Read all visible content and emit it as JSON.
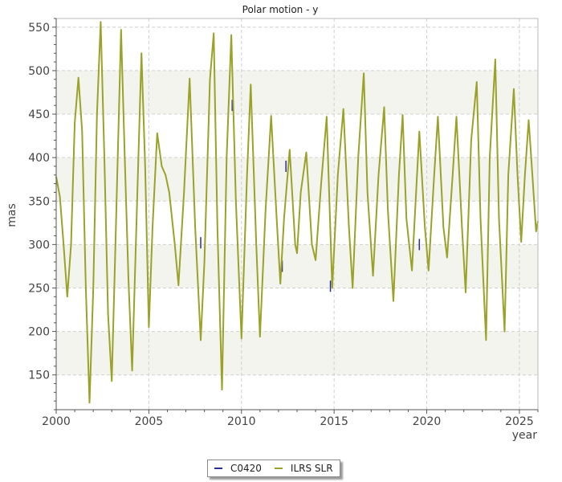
{
  "chart_data": {
    "type": "line",
    "title": "Polar motion - y",
    "xlabel": "year",
    "ylabel": "mas",
    "xlim": [
      2000,
      2026
    ],
    "ylim": [
      110,
      560
    ],
    "x_ticks": [
      "2000",
      "2005",
      "2010",
      "2015",
      "2020",
      "2025"
    ],
    "y_ticks": [
      "150",
      "200",
      "250",
      "300",
      "350",
      "400",
      "450",
      "500",
      "550"
    ],
    "grid": true,
    "legend_position": "bottom-center",
    "series": [
      {
        "name": "C0420",
        "color": "#2b2b9b",
        "points": [
          [
            2007.8,
            302
          ],
          [
            2009.5,
            460
          ],
          [
            2012.2,
            275
          ],
          [
            2012.4,
            390
          ],
          [
            2014.8,
            252
          ],
          [
            2019.6,
            300
          ]
        ]
      },
      {
        "name": "ILRS SLR",
        "color": "#9aa22a",
        "points": [
          [
            2000.0,
            378
          ],
          [
            2000.2,
            355
          ],
          [
            2000.4,
            300
          ],
          [
            2000.6,
            240
          ],
          [
            2000.8,
            300
          ],
          [
            2001.0,
            440
          ],
          [
            2001.2,
            492
          ],
          [
            2001.4,
            430
          ],
          [
            2001.6,
            250
          ],
          [
            2001.8,
            118
          ],
          [
            2002.0,
            250
          ],
          [
            2002.2,
            450
          ],
          [
            2002.4,
            556
          ],
          [
            2002.6,
            400
          ],
          [
            2002.8,
            220
          ],
          [
            2003.0,
            143
          ],
          [
            2003.2,
            300
          ],
          [
            2003.5,
            547
          ],
          [
            2003.7,
            400
          ],
          [
            2003.9,
            260
          ],
          [
            2004.1,
            155
          ],
          [
            2004.3,
            300
          ],
          [
            2004.6,
            520
          ],
          [
            2004.8,
            390
          ],
          [
            2005.0,
            205
          ],
          [
            2005.2,
            320
          ],
          [
            2005.45,
            428
          ],
          [
            2005.7,
            390
          ],
          [
            2005.9,
            380
          ],
          [
            2006.1,
            360
          ],
          [
            2006.4,
            300
          ],
          [
            2006.6,
            253
          ],
          [
            2006.9,
            360
          ],
          [
            2007.2,
            491
          ],
          [
            2007.5,
            320
          ],
          [
            2007.8,
            190
          ],
          [
            2008.0,
            280
          ],
          [
            2008.3,
            490
          ],
          [
            2008.5,
            543
          ],
          [
            2008.7,
            320
          ],
          [
            2008.95,
            133
          ],
          [
            2009.2,
            400
          ],
          [
            2009.45,
            541
          ],
          [
            2009.7,
            350
          ],
          [
            2010.0,
            192
          ],
          [
            2010.3,
            380
          ],
          [
            2010.5,
            484
          ],
          [
            2010.8,
            300
          ],
          [
            2011.0,
            194
          ],
          [
            2011.3,
            340
          ],
          [
            2011.6,
            448
          ],
          [
            2011.9,
            330
          ],
          [
            2012.1,
            255
          ],
          [
            2012.3,
            330
          ],
          [
            2012.6,
            409
          ],
          [
            2012.9,
            300
          ],
          [
            2013.0,
            290
          ],
          [
            2013.2,
            360
          ],
          [
            2013.5,
            406
          ],
          [
            2013.8,
            300
          ],
          [
            2014.0,
            282
          ],
          [
            2014.3,
            370
          ],
          [
            2014.6,
            447
          ],
          [
            2014.9,
            250
          ],
          [
            2015.2,
            380
          ],
          [
            2015.5,
            456
          ],
          [
            2015.8,
            320
          ],
          [
            2016.0,
            250
          ],
          [
            2016.3,
            400
          ],
          [
            2016.6,
            497
          ],
          [
            2016.8,
            360
          ],
          [
            2017.1,
            264
          ],
          [
            2017.4,
            380
          ],
          [
            2017.7,
            458
          ],
          [
            2017.9,
            340
          ],
          [
            2018.2,
            235
          ],
          [
            2018.5,
            380
          ],
          [
            2018.7,
            449
          ],
          [
            2018.9,
            330
          ],
          [
            2019.2,
            270
          ],
          [
            2019.6,
            430
          ],
          [
            2019.9,
            320
          ],
          [
            2020.1,
            270
          ],
          [
            2020.4,
            380
          ],
          [
            2020.6,
            447
          ],
          [
            2020.9,
            320
          ],
          [
            2021.1,
            285
          ],
          [
            2021.4,
            380
          ],
          [
            2021.6,
            447
          ],
          [
            2021.9,
            320
          ],
          [
            2022.1,
            245
          ],
          [
            2022.4,
            420
          ],
          [
            2022.7,
            487
          ],
          [
            2022.9,
            330
          ],
          [
            2023.2,
            190
          ],
          [
            2023.4,
            400
          ],
          [
            2023.7,
            513
          ],
          [
            2023.9,
            330
          ],
          [
            2024.2,
            200
          ],
          [
            2024.4,
            380
          ],
          [
            2024.7,
            479
          ],
          [
            2024.9,
            380
          ],
          [
            2025.1,
            303
          ],
          [
            2025.3,
            380
          ],
          [
            2025.5,
            443
          ],
          [
            2025.7,
            380
          ],
          [
            2025.9,
            315
          ],
          [
            2026.0,
            327
          ]
        ]
      }
    ]
  }
}
